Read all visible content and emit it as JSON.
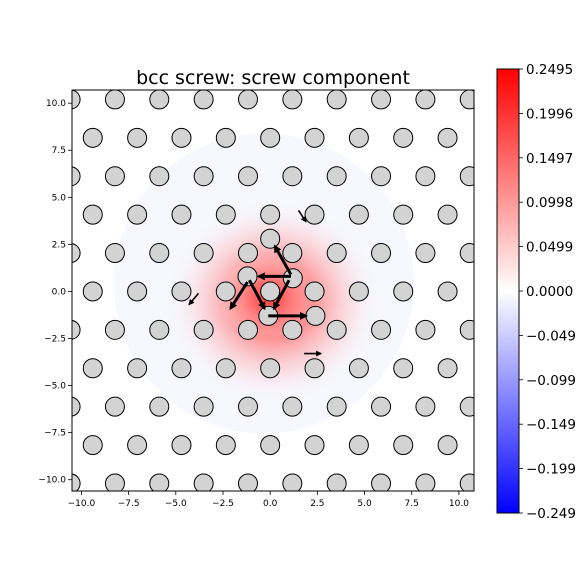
{
  "chart_data": {
    "type": "scatter",
    "title": "bcc screw: screw component",
    "xlabel": "",
    "ylabel": "",
    "xlim": [
      -10.5,
      10.8
    ],
    "ylim": [
      -10.6,
      10.7
    ],
    "xticks": [
      -10.0,
      -7.5,
      -5.0,
      -2.5,
      0.0,
      2.5,
      5.0,
      7.5,
      10.0
    ],
    "xtick_labels": [
      "−10.0",
      "−7.5",
      "−5.0",
      "−2.5",
      "0.0",
      "2.5",
      "5.0",
      "7.5",
      "10.0"
    ],
    "yticks": [
      -10.0,
      -7.5,
      -5.0,
      -2.5,
      0.0,
      2.5,
      5.0,
      7.5,
      10.0
    ],
    "ytick_labels": [
      "−10.0",
      "−7.5",
      "−5.0",
      "−2.5",
      "0.0",
      "2.5",
      "5.0",
      "7.5",
      "10.0"
    ],
    "grid": false,
    "atom_lattice": {
      "spacing_x": 2.35,
      "row_spacing_y": 2.04,
      "row_phase_offset_x": 1.175,
      "atom_color": "#d3d3d3",
      "atom_edge_color": "#000000"
    },
    "displaced_atoms": [
      {
        "x": -1.2,
        "y": 0.8
      },
      {
        "x": 1.2,
        "y": 0.7
      },
      {
        "x": 0.0,
        "y": 2.8
      },
      {
        "x": -0.1,
        "y": -1.3
      },
      {
        "x": 2.4,
        "y": -1.3
      }
    ],
    "arrows": [
      {
        "x1": 1.1,
        "y1": 0.9,
        "x2": 0.25,
        "y2": 2.4,
        "weight": "bold"
      },
      {
        "x1": 1.1,
        "y1": 0.8,
        "x2": -0.6,
        "y2": 0.8,
        "weight": "bold"
      },
      {
        "x1": 1.0,
        "y1": 0.6,
        "x2": 0.2,
        "y2": -0.9,
        "weight": "bold"
      },
      {
        "x1": -1.1,
        "y1": 0.6,
        "x2": -0.3,
        "y2": -0.9,
        "weight": "bold"
      },
      {
        "x1": -1.2,
        "y1": 0.5,
        "x2": -2.1,
        "y2": -0.9,
        "weight": "bold"
      },
      {
        "x1": -0.1,
        "y1": -1.3,
        "x2": 1.9,
        "y2": -1.3,
        "weight": "bold"
      },
      {
        "x1": 1.5,
        "y1": 4.3,
        "x2": 1.9,
        "y2": 3.7,
        "weight": "light"
      },
      {
        "x1": -3.8,
        "y1": -0.1,
        "x2": -4.3,
        "y2": -0.7,
        "weight": "light"
      },
      {
        "x1": 1.8,
        "y1": -3.3,
        "x2": 2.7,
        "y2": -3.3,
        "weight": "light"
      }
    ],
    "colorbar": {
      "cmap": "bwr",
      "vmin": -0.2495,
      "vmax": 0.2495,
      "ticks": [
        0.2495,
        0.1996,
        0.1497,
        0.0998,
        0.0499,
        0.0,
        -0.0499,
        -0.0998,
        -0.1497,
        -0.1996,
        -0.2495
      ],
      "tick_labels": [
        "0.2495",
        "0.1996",
        "0.1497",
        "0.0998",
        "0.0499",
        "0.0000",
        "−0.0499",
        "−0.0998",
        "−0.1497",
        "−0.1996",
        "−0.2495"
      ],
      "high_color": "#ff0000",
      "mid_color": "#ffffff",
      "low_color": "#0000ff"
    },
    "field_peak": {
      "x": 0.2,
      "y": 0.0,
      "value": 0.22
    }
  }
}
